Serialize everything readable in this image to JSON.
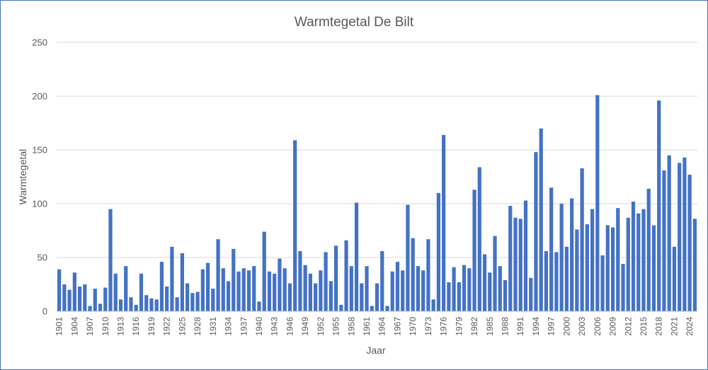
{
  "chart_data": {
    "type": "bar",
    "title": "Warmtegetal De Bilt",
    "xlabel": "Jaar",
    "ylabel": "Warmtegetal",
    "ylim": [
      0,
      250
    ],
    "yticks": [
      0,
      50,
      100,
      150,
      200,
      250
    ],
    "grid": true,
    "bar_color": "#4472c4",
    "categories": [
      "1901",
      "1902",
      "1903",
      "1904",
      "1905",
      "1906",
      "1907",
      "1908",
      "1909",
      "1910",
      "1911",
      "1912",
      "1913",
      "1914",
      "1915",
      "1916",
      "1917",
      "1918",
      "1919",
      "1920",
      "1921",
      "1922",
      "1923",
      "1924",
      "1925",
      "1926",
      "1927",
      "1928",
      "1929",
      "1930",
      "1931",
      "1932",
      "1933",
      "1934",
      "1935",
      "1936",
      "1937",
      "1938",
      "1939",
      "1940",
      "1941",
      "1942",
      "1943",
      "1944",
      "1945",
      "1946",
      "1947",
      "1948",
      "1949",
      "1950",
      "1951",
      "1952",
      "1953",
      "1954",
      "1955",
      "1956",
      "1957",
      "1958",
      "1959",
      "1960",
      "1961",
      "1962",
      "1963",
      "1964",
      "1965",
      "1966",
      "1967",
      "1968",
      "1969",
      "1970",
      "1971",
      "1972",
      "1973",
      "1974",
      "1975",
      "1976",
      "1977",
      "1978",
      "1979",
      "1980",
      "1981",
      "1982",
      "1983",
      "1984",
      "1985",
      "1986",
      "1987",
      "1988",
      "1989",
      "1990",
      "1991",
      "1992",
      "1993",
      "1994",
      "1995",
      "1996",
      "1997",
      "1998",
      "1999",
      "2000",
      "2001",
      "2002",
      "2003",
      "2004",
      "2005",
      "2006",
      "2007",
      "2008",
      "2009",
      "2010",
      "2011",
      "2012",
      "2013",
      "2014",
      "2015",
      "2016",
      "2017",
      "2018",
      "2019",
      "2020",
      "2021",
      "2022",
      "2023",
      "2024",
      "2025"
    ],
    "tick_labels": [
      "1901",
      "1904",
      "1907",
      "1910",
      "1913",
      "1916",
      "1919",
      "1922",
      "1925",
      "1928",
      "1931",
      "1934",
      "1937",
      "1940",
      "1943",
      "1946",
      "1949",
      "1952",
      "1955",
      "1958",
      "1961",
      "1964",
      "1967",
      "1970",
      "1973",
      "1976",
      "1979",
      "1982",
      "1985",
      "1988",
      "1991",
      "1994",
      "1997",
      "2000",
      "2003",
      "2006",
      "2009",
      "2012",
      "2015",
      "2018",
      "2021",
      "2024"
    ],
    "values": [
      39,
      25,
      20,
      36,
      23,
      25,
      5,
      21,
      7,
      22,
      95,
      35,
      11,
      42,
      13,
      6,
      35,
      15,
      12,
      11,
      46,
      23,
      60,
      13,
      54,
      26,
      17,
      18,
      39,
      45,
      21,
      67,
      40,
      28,
      58,
      37,
      40,
      38,
      42,
      9,
      74,
      37,
      35,
      49,
      40,
      26,
      159,
      56,
      43,
      35,
      26,
      38,
      55,
      28,
      61,
      6,
      66,
      42,
      101,
      26,
      42,
      5,
      26,
      56,
      5,
      37,
      46,
      38,
      99,
      68,
      42,
      38,
      67,
      11,
      110,
      164,
      27,
      41,
      27,
      43,
      40,
      113,
      134,
      53,
      36,
      70,
      42,
      29,
      98,
      87,
      86,
      103,
      31,
      148,
      170,
      56,
      115,
      55,
      100,
      60,
      105,
      76,
      133,
      81,
      95,
      201,
      52,
      80,
      78,
      96,
      44,
      87,
      102,
      91,
      95,
      114,
      80,
      196,
      131,
      145,
      60,
      138,
      143,
      127,
      86
    ]
  }
}
